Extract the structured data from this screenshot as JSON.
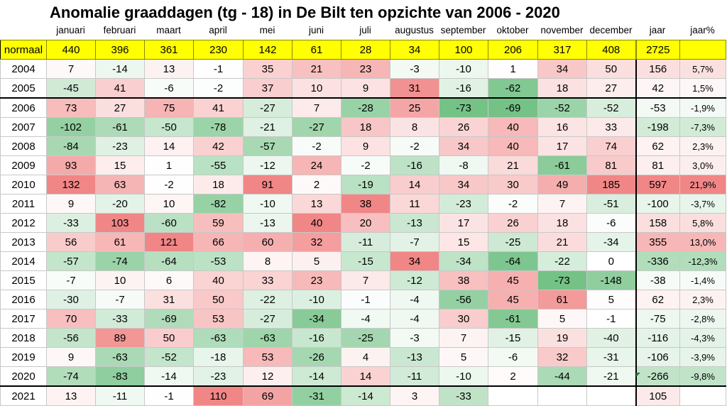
{
  "title": "Anomalie graaddagen (tg - 18) in De Bilt ten opzichte van 2006 - 2020",
  "months": [
    "januari",
    "februari",
    "maart",
    "april",
    "mei",
    "juni",
    "juli",
    "augustus",
    "september",
    "oktober",
    "november",
    "december"
  ],
  "year_header": "jaar",
  "pct_header": "jaar%",
  "normaal": {
    "label": "normaal",
    "values": [
      "440",
      "396",
      "361",
      "230",
      "142",
      "61",
      "28",
      "34",
      "100",
      "206",
      "317",
      "408"
    ],
    "year": "2725",
    "pct": ""
  },
  "rows": [
    {
      "year": "2004",
      "values": [
        "7",
        "-14",
        "13",
        "-1",
        "35",
        "21",
        "23",
        "-3",
        "-10",
        "1",
        "34",
        "50"
      ],
      "total": "156",
      "pct": "5,7%"
    },
    {
      "year": "2005",
      "values": [
        "-45",
        "41",
        "-6",
        "-2",
        "37",
        "10",
        "9",
        "31",
        "-16",
        "-62",
        "18",
        "27"
      ],
      "total": "42",
      "pct": "1,5%"
    },
    {
      "year": "2006",
      "values": [
        "73",
        "27",
        "75",
        "41",
        "-27",
        "7",
        "-28",
        "25",
        "-73",
        "-69",
        "-52",
        "-52"
      ],
      "total": "-53",
      "pct": "-1,9%"
    },
    {
      "year": "2007",
      "values": [
        "-102",
        "-61",
        "-50",
        "-78",
        "-21",
        "-27",
        "18",
        "8",
        "26",
        "40",
        "16",
        "33"
      ],
      "total": "-198",
      "pct": "-7,3%"
    },
    {
      "year": "2008",
      "values": [
        "-84",
        "-23",
        "14",
        "42",
        "-57",
        "-2",
        "9",
        "-2",
        "34",
        "40",
        "17",
        "74"
      ],
      "total": "62",
      "pct": "2,3%"
    },
    {
      "year": "2009",
      "values": [
        "93",
        "15",
        "1",
        "-55",
        "-12",
        "24",
        "-2",
        "-16",
        "-8",
        "21",
        "-61",
        "81"
      ],
      "total": "81",
      "pct": "3,0%"
    },
    {
      "year": "2010",
      "values": [
        "132",
        "63",
        "-2",
        "18",
        "91",
        "2",
        "-19",
        "14",
        "34",
        "30",
        "49",
        "185"
      ],
      "total": "597",
      "pct": "21,9%"
    },
    {
      "year": "2011",
      "values": [
        "9",
        "-20",
        "10",
        "-82",
        "-10",
        "13",
        "38",
        "11",
        "-23",
        "-2",
        "7",
        "-51"
      ],
      "total": "-100",
      "pct": "-3,7%"
    },
    {
      "year": "2012",
      "values": [
        "-33",
        "103",
        "-60",
        "59",
        "-13",
        "40",
        "20",
        "-13",
        "17",
        "26",
        "18",
        "-6"
      ],
      "total": "158",
      "pct": "5,8%"
    },
    {
      "year": "2013",
      "values": [
        "56",
        "61",
        "121",
        "66",
        "60",
        "32",
        "-11",
        "-7",
        "15",
        "-25",
        "21",
        "-34"
      ],
      "total": "355",
      "pct": "13,0%"
    },
    {
      "year": "2014",
      "values": [
        "-57",
        "-74",
        "-64",
        "-53",
        "8",
        "5",
        "-15",
        "34",
        "-34",
        "-64",
        "-22",
        "0"
      ],
      "total": "-336",
      "pct": "-12,3%"
    },
    {
      "year": "2015",
      "values": [
        "-7",
        "10",
        "6",
        "40",
        "33",
        "23",
        "7",
        "-12",
        "38",
        "45",
        "-73",
        "-148"
      ],
      "total": "-38",
      "pct": "-1,4%"
    },
    {
      "year": "2016",
      "values": [
        "-30",
        "-7",
        "31",
        "50",
        "-22",
        "-10",
        "-1",
        "-4",
        "-56",
        "45",
        "61",
        "5"
      ],
      "total": "62",
      "pct": "2,3%"
    },
    {
      "year": "2017",
      "values": [
        "70",
        "-33",
        "-69",
        "53",
        "-27",
        "-34",
        "-4",
        "-4",
        "30",
        "-61",
        "5",
        "-1"
      ],
      "total": "-75",
      "pct": "-2,8%"
    },
    {
      "year": "2018",
      "values": [
        "-56",
        "89",
        "50",
        "-63",
        "-63",
        "-16",
        "-25",
        "-3",
        "7",
        "-15",
        "19",
        "-40"
      ],
      "total": "-116",
      "pct": "-4,3%"
    },
    {
      "year": "2019",
      "values": [
        "9",
        "-63",
        "-52",
        "-18",
        "53",
        "-26",
        "4",
        "-13",
        "5",
        "-6",
        "32",
        "-31"
      ],
      "total": "-106",
      "pct": "-3,9%"
    },
    {
      "year": "2020",
      "values": [
        "-74",
        "-83",
        "-14",
        "-23",
        "12",
        "-14",
        "14",
        "-11",
        "-10",
        "2",
        "-44",
        "-21"
      ],
      "total": "-266",
      "pct": "-9,8%"
    },
    {
      "year": "2021",
      "values": [
        "13",
        "-11",
        "-1",
        "110",
        "69",
        "-31",
        "-14",
        "3",
        "-33",
        "",
        "",
        ""
      ],
      "total": "105",
      "pct": ""
    }
  ],
  "colors": {
    "normaal_bg": "#ffff00",
    "warm": "#f08080",
    "cold": "#6dbf80"
  }
}
